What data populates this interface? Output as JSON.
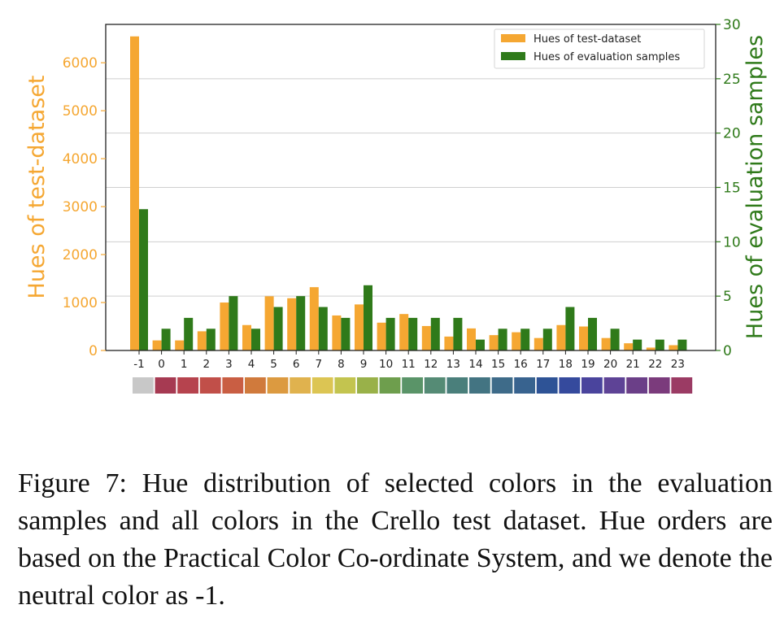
{
  "chart_data": {
    "type": "bar",
    "categories": [
      "-1",
      "0",
      "1",
      "2",
      "3",
      "4",
      "5",
      "6",
      "7",
      "8",
      "9",
      "10",
      "11",
      "12",
      "13",
      "14",
      "15",
      "16",
      "17",
      "18",
      "19",
      "20",
      "21",
      "22",
      "23"
    ],
    "series": [
      {
        "name": "Hues of test-dataset",
        "axis": "left",
        "color": "#f5a732",
        "values": [
          6550,
          210,
          210,
          400,
          1000,
          530,
          1130,
          1090,
          1320,
          730,
          960,
          580,
          760,
          510,
          290,
          460,
          320,
          380,
          260,
          530,
          500,
          260,
          150,
          60,
          110
        ]
      },
      {
        "name": "Hues of evaluation samples",
        "axis": "right",
        "color": "#2f7a1a",
        "values": [
          13,
          2,
          3,
          2,
          5,
          2,
          4,
          5,
          4,
          3,
          6,
          3,
          3,
          3,
          3,
          1,
          2,
          2,
          2,
          4,
          3,
          2,
          1,
          1,
          1
        ]
      }
    ],
    "ylabel": "Hues of test-dataset",
    "ylabel_right": "Hues of evaluation samples",
    "ylim": [
      0,
      6800
    ],
    "ylim_right": [
      0,
      30
    ],
    "yticks": [
      "0",
      "1000",
      "2000",
      "3000",
      "4000",
      "5000",
      "6000"
    ],
    "yticks_right": [
      "0",
      "5",
      "10",
      "15",
      "20",
      "25",
      "30"
    ],
    "grid": "horizontal",
    "legend_position": "top-right",
    "hue_strip_colors": [
      "#c8c8c8",
      "#a63a52",
      "#b6434e",
      "#c14f49",
      "#c95e43",
      "#d07a3c",
      "#dc9a40",
      "#e0b24e",
      "#dcc553",
      "#c3c44f",
      "#99b149",
      "#6e9e4d",
      "#5a9468",
      "#558b75",
      "#4a7f7b",
      "#437482",
      "#3e6b89",
      "#38638f",
      "#2e5396",
      "#354a9d",
      "#4a449d",
      "#5e4396",
      "#6b3f88",
      "#7b3b7c",
      "#9b3b64"
    ]
  },
  "caption": "Figure 7: Hue distribution of selected colors in the evaluation samples and all colors in the Crello test dataset. Hue orders are based on the Practical Color Co-ordinate System, and we denote the neutral color as -1."
}
